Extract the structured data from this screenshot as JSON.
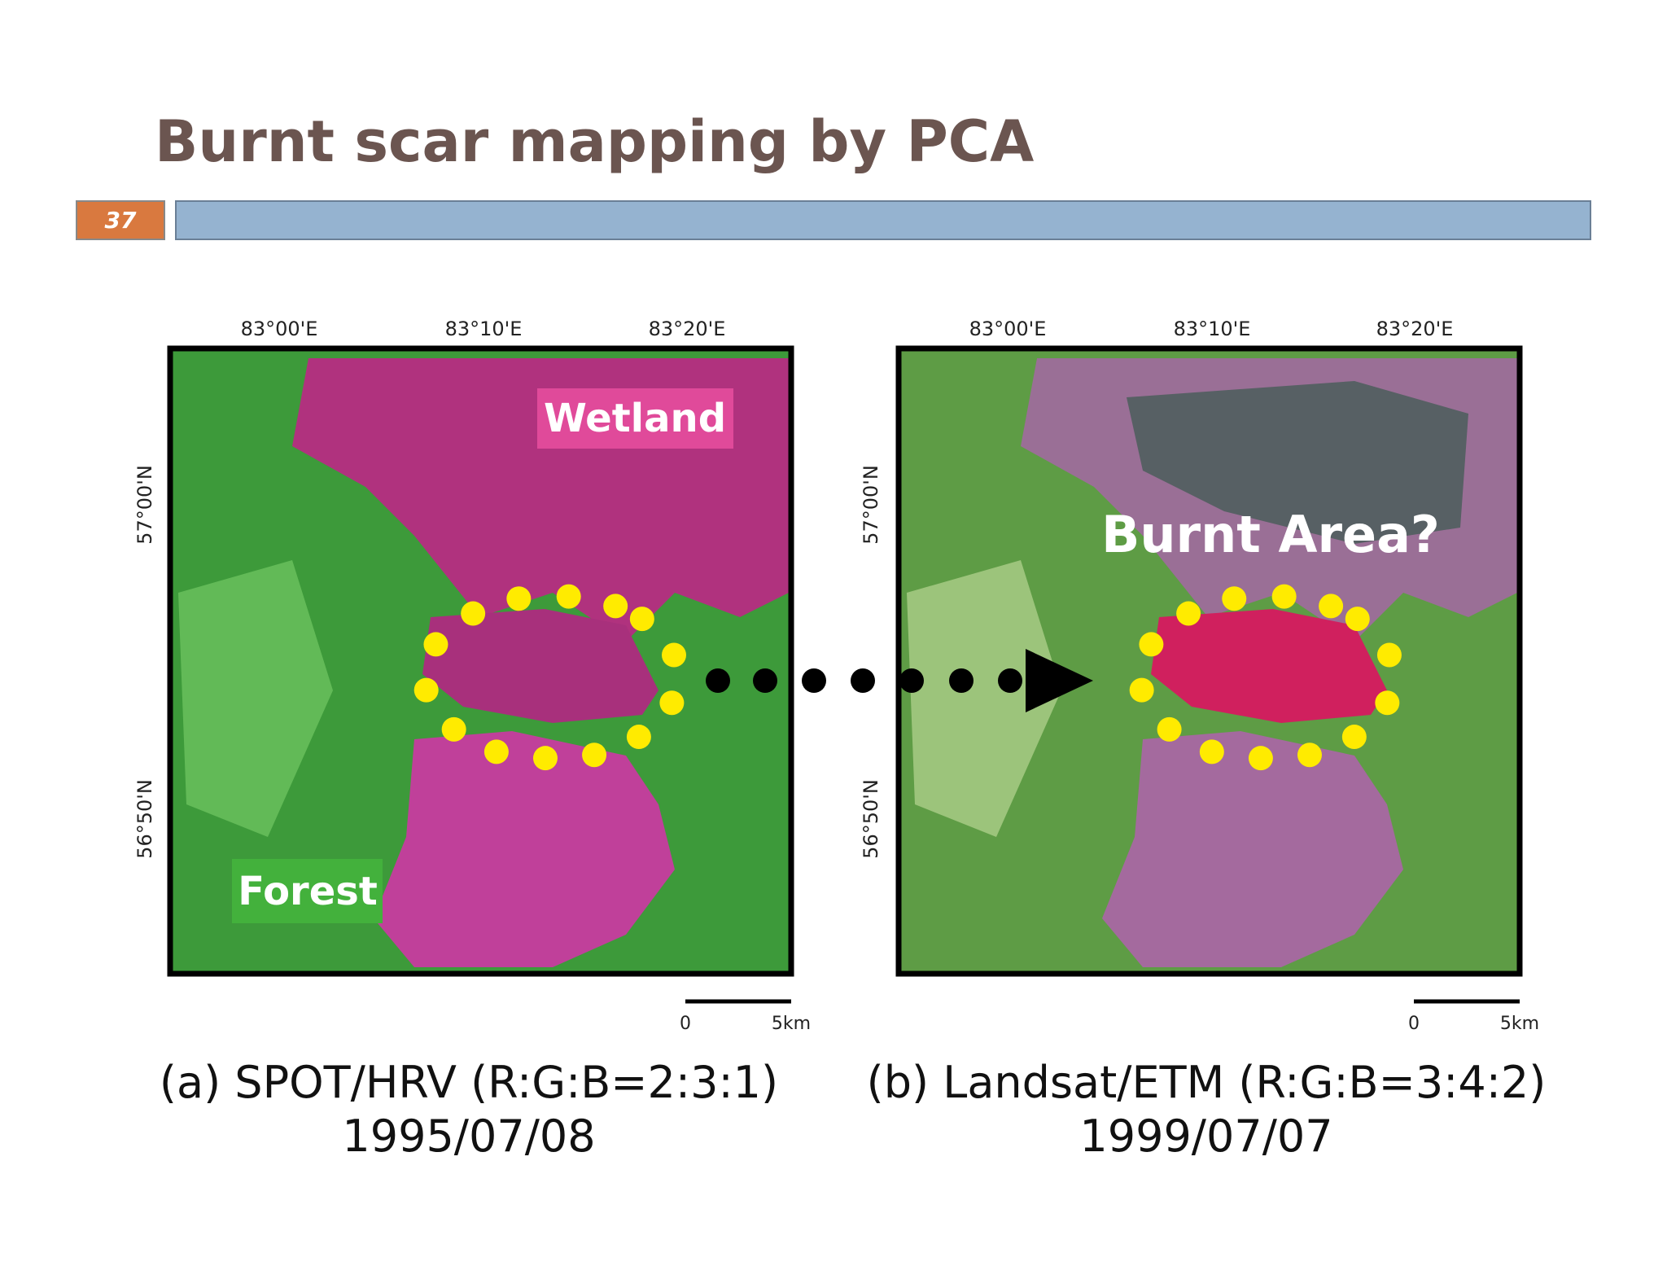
{
  "title": "Burnt scar mapping by PCA",
  "slide_number": "37",
  "panels": [
    {
      "lon_labels": [
        "83°00'E",
        "83°10'E",
        "83°20'E"
      ],
      "lat_labels": [
        "57°00'N",
        "56°50'N"
      ],
      "scale_labels": [
        "0",
        "5km"
      ],
      "annotations": [
        "Wetland",
        "Forest"
      ],
      "caption": [
        "(a) SPOT/HRV (R:G:B=2:3:1)",
        "1995/07/08"
      ]
    },
    {
      "lon_labels": [
        "83°00'E",
        "83°10'E",
        "83°20'E"
      ],
      "lat_labels": [
        "57°00'N",
        "56°50'N"
      ],
      "scale_labels": [
        "0",
        "5km"
      ],
      "annotations": [
        "Burnt Area?"
      ],
      "caption": [
        "(b) Landsat/ETM (R:G:B=3:4:2)",
        "1999/07/07"
      ]
    }
  ]
}
